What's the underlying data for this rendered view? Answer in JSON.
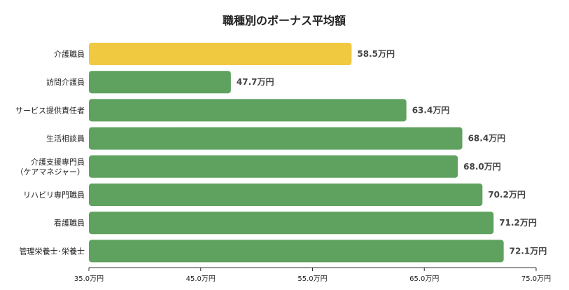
{
  "chart_data": {
    "type": "bar",
    "orientation": "horizontal",
    "title": "職種別のボーナス平均額",
    "categories": [
      [
        "介護職員"
      ],
      [
        "訪問介護員"
      ],
      [
        "サービス提供責任者"
      ],
      [
        "生活相談員"
      ],
      [
        "介護支援専門員",
        "（ケアマネジャー）"
      ],
      [
        "リハビリ専門職員"
      ],
      [
        "看護職員"
      ],
      [
        "管理栄養士･栄養士"
      ]
    ],
    "values": [
      58.5,
      47.7,
      63.4,
      68.4,
      68.0,
      70.2,
      71.2,
      72.1
    ],
    "value_labels": [
      "58.5万円",
      "47.7万円",
      "63.4万円",
      "68.4万円",
      "68.0万円",
      "70.2万円",
      "71.2万円",
      "72.1万円"
    ],
    "bar_colors": [
      "#f0c940",
      "#5fa15f",
      "#5fa15f",
      "#5fa15f",
      "#5fa15f",
      "#5fa15f",
      "#5fa15f",
      "#5fa15f"
    ],
    "xlim": [
      35.0,
      75.0
    ],
    "xticks": [
      35.0,
      45.0,
      55.0,
      65.0,
      75.0
    ],
    "xtick_labels": [
      "35.0万円",
      "45.0万円",
      "55.0万円",
      "65.0万円",
      "75.0万円"
    ],
    "xlabel": "",
    "ylabel": "",
    "grid": false,
    "legend": "none"
  }
}
